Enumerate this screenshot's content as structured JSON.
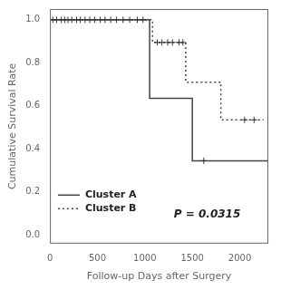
{
  "chart_data": {
    "type": "step",
    "xlabel": "Follow-up Days after Surgery",
    "ylabel": "Cumulative Survival Rate",
    "annotation": "P = 0.0315",
    "series": [
      {
        "name": "Cluster A",
        "color": "#444444",
        "line_style": "solid",
        "x": [
          0,
          1050,
          1050,
          1500,
          1500,
          1620,
          2300
        ],
        "values": [
          1.0,
          1.0,
          0.635,
          0.635,
          0.345,
          0.345,
          0.345
        ],
        "censors": {
          "color": "#333333",
          "marker": "+",
          "x": [
            30,
            70,
            120,
            155,
            190,
            230,
            280,
            320,
            370,
            420,
            470,
            530,
            580,
            640,
            700,
            770,
            840,
            920,
            980,
            1620
          ],
          "values": [
            1.0,
            1.0,
            1.0,
            1.0,
            1.0,
            1.0,
            1.0,
            1.0,
            1.0,
            1.0,
            1.0,
            1.0,
            1.0,
            1.0,
            1.0,
            1.0,
            1.0,
            1.0,
            1.0,
            0.345
          ]
        }
      },
      {
        "name": "Cluster B",
        "color": "#444444",
        "line_style": "dotted",
        "x": [
          0,
          1080,
          1080,
          1430,
          1430,
          1800,
          1800,
          2250
        ],
        "values": [
          1.0,
          1.0,
          0.895,
          0.895,
          0.71,
          0.71,
          0.535,
          0.535
        ],
        "censors": {
          "color": "#333333",
          "marker": "+",
          "x": [
            1130,
            1180,
            1240,
            1290,
            1360,
            1400,
            2050,
            2150
          ],
          "values": [
            0.895,
            0.895,
            0.895,
            0.895,
            0.895,
            0.895,
            0.535,
            0.535
          ]
        }
      }
    ],
    "xlim": [
      0,
      2300
    ],
    "xticks": [
      0,
      500,
      1000,
      1500,
      2000
    ],
    "ylim": [
      -0.04,
      1.05
    ],
    "yticks": [
      {
        "value": 0.0,
        "label": "0.0"
      },
      0.2,
      0.4,
      0.6,
      0.8,
      {
        "value": 1.0,
        "label": "1.0"
      }
    ],
    "grid": false,
    "legend": "lower left"
  }
}
